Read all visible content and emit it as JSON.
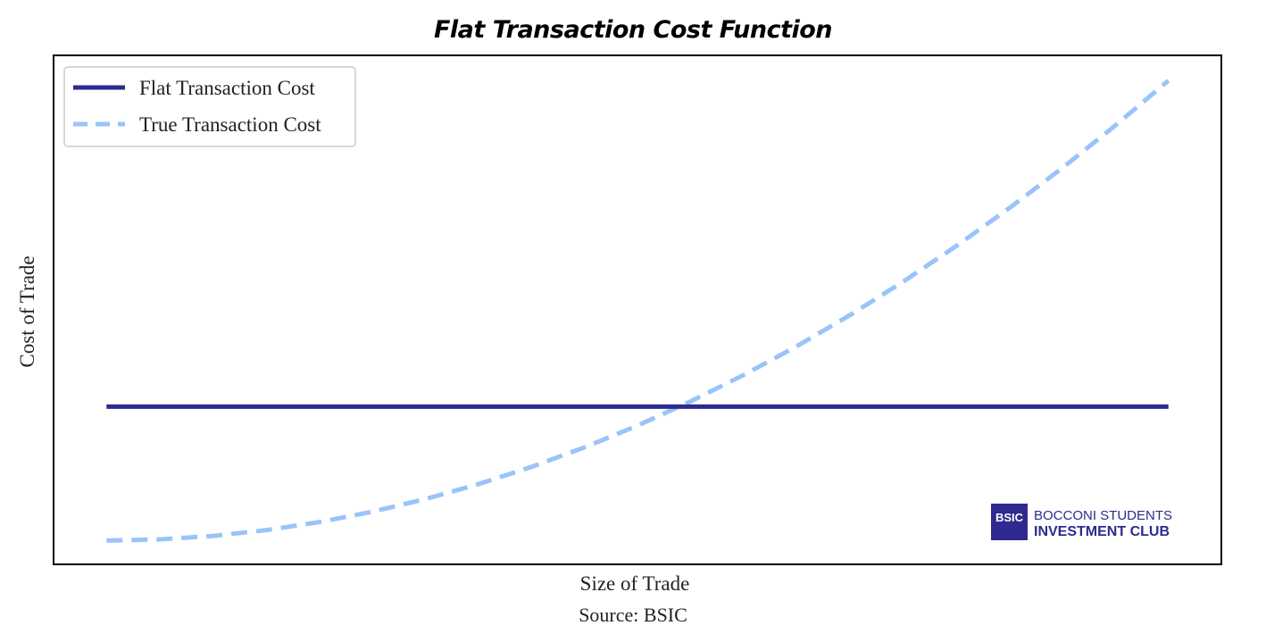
{
  "chart_data": {
    "type": "line",
    "title": "Flat Transaction Cost Function",
    "xlabel": "Size of Trade",
    "ylabel": "Cost of Trade",
    "xticks": "none",
    "yticks": "none",
    "grid": false,
    "legend_position": "top-left",
    "x": [
      0.0,
      0.05,
      0.1,
      0.15,
      0.2,
      0.25,
      0.3,
      0.35,
      0.4,
      0.45,
      0.5,
      0.55,
      0.6,
      0.65,
      0.7,
      0.75,
      0.8,
      0.85,
      0.9,
      0.95,
      1.0
    ],
    "series": [
      {
        "name": "Flat Transaction Cost",
        "color": "#2e2a8f",
        "style": "solid",
        "values": [
          0.2913,
          0.2913,
          0.2913,
          0.2913,
          0.2913,
          0.2913,
          0.2913,
          0.2913,
          0.2913,
          0.2913,
          0.2913,
          0.2913,
          0.2913,
          0.2913,
          0.2913,
          0.2913,
          0.2913,
          0.2913,
          0.2913,
          0.2913,
          0.2913
        ]
      },
      {
        "name": "True Transaction Cost",
        "color": "#99c4fa",
        "style": "dashed",
        "values": [
          0.0,
          0.0025,
          0.01,
          0.0225,
          0.04,
          0.0625,
          0.09,
          0.1225,
          0.16,
          0.2025,
          0.25,
          0.3025,
          0.36,
          0.4225,
          0.49,
          0.5625,
          0.64,
          0.7225,
          0.81,
          0.9025,
          1.0
        ]
      }
    ],
    "xlim": [
      -0.049,
      1.049
    ],
    "ylim": [
      -0.0498,
      1.053
    ]
  },
  "source": "Source: BSIC",
  "logo": {
    "mark": "BSIC",
    "line1": "BOCCONI STUDENTS",
    "line2": "INVESTMENT CLUB",
    "color": "#2e2a8f"
  }
}
